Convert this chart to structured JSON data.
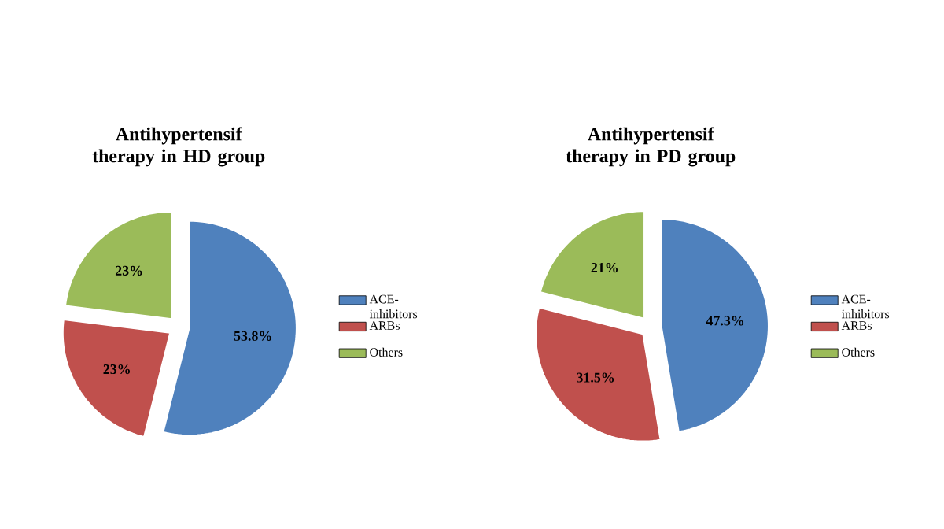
{
  "chart_data": [
    {
      "type": "pie",
      "title": "Antihypertensif therapy in HD group",
      "categories": [
        "ACE-inhibitors",
        "ARBs",
        "Others"
      ],
      "values": [
        53.8,
        23,
        23
      ],
      "colors": [
        "#4f81bd",
        "#c0504d",
        "#9bbb59"
      ],
      "value_labels": [
        "53.8%",
        "23%",
        "23%"
      ],
      "legend": "right"
    },
    {
      "type": "pie",
      "title": "Antihypertensif therapy in PD group",
      "categories": [
        "ACE-inhibitors",
        "ARBs",
        "Others"
      ],
      "values": [
        47.3,
        31.5,
        21
      ],
      "colors": [
        "#4f81bd",
        "#c0504d",
        "#9bbb59"
      ],
      "value_labels": [
        "47.3%",
        "31.5%",
        "21%"
      ],
      "legend": "right"
    }
  ]
}
